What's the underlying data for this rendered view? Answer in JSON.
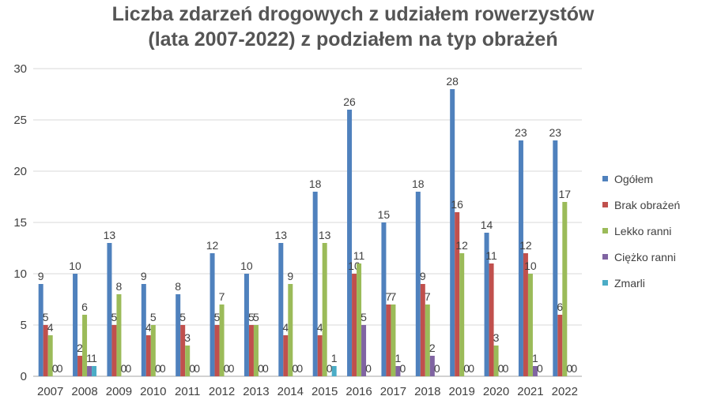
{
  "chart_data": {
    "type": "bar",
    "title_lines": [
      "Liczba zdarzeń drogowych z udziałem rowerzystów",
      "(lata 2007-2022) z podziałem na typ obrażeń"
    ],
    "xlabel": "",
    "ylabel": "",
    "ylim": [
      0,
      30
    ],
    "yticks": [
      0,
      5,
      10,
      15,
      20,
      25,
      30
    ],
    "grid": true,
    "legend_position": "right",
    "categories": [
      "2007",
      "2008",
      "2009",
      "2010",
      "2011",
      "2012",
      "2013",
      "2014",
      "2015",
      "2016",
      "2017",
      "2018",
      "2019",
      "2020",
      "2021",
      "2022"
    ],
    "series": [
      {
        "name": "Ogółem",
        "color": "#4f81bd",
        "values": [
          9,
          10,
          13,
          9,
          8,
          12,
          10,
          13,
          18,
          26,
          15,
          18,
          28,
          14,
          23,
          23
        ]
      },
      {
        "name": "Brak obrażeń",
        "color": "#c0504d",
        "values": [
          5,
          2,
          5,
          4,
          5,
          5,
          5,
          4,
          4,
          10,
          7,
          9,
          16,
          11,
          12,
          6
        ]
      },
      {
        "name": "Lekko ranni",
        "color": "#9bbb59",
        "values": [
          4,
          6,
          8,
          5,
          3,
          7,
          5,
          9,
          13,
          11,
          7,
          7,
          12,
          3,
          10,
          17
        ]
      },
      {
        "name": "Ciężko ranni",
        "color": "#8064a2",
        "values": [
          0,
          1,
          0,
          0,
          0,
          0,
          0,
          0,
          0,
          5,
          1,
          2,
          0,
          0,
          1,
          0
        ]
      },
      {
        "name": "Zmarli",
        "color": "#4bacc6",
        "values": [
          0,
          1,
          0,
          0,
          0,
          0,
          0,
          0,
          1,
          0,
          0,
          0,
          0,
          0,
          0,
          0
        ]
      }
    ]
  }
}
